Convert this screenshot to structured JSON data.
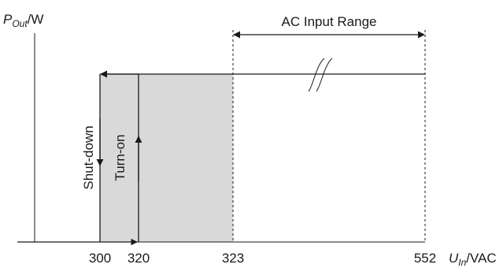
{
  "y_axis": {
    "label_main": "P",
    "label_sub": "Out",
    "label_unit": "/W"
  },
  "x_axis": {
    "label_main": "U",
    "label_sub": "In",
    "label_unit": "/VAC",
    "ticks": [
      "300",
      "320",
      "323",
      "552"
    ]
  },
  "range_label": "AC Input Range",
  "hysteresis_labels": {
    "shutdown": "Shut-down",
    "turnon": "Turn-on"
  },
  "colors": {
    "line": "#1a1a1a",
    "hysteresis_fill": "#d9d9d9"
  }
}
